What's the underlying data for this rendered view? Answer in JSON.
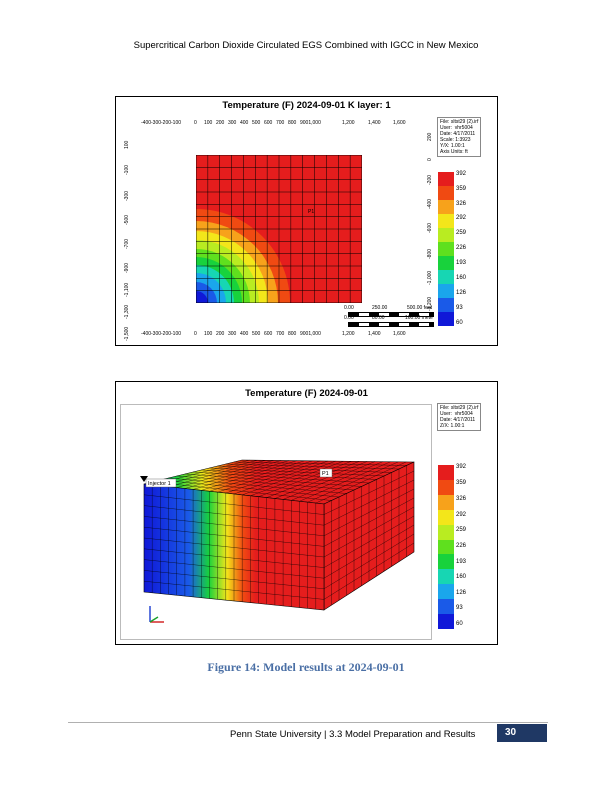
{
  "header": "Supercritical Carbon Dioxide Circulated EGS Combined with IGCC in New Mexico",
  "figure1": {
    "title": "Temperature (F) 2024-09-01     K layer: 1",
    "info": "File: sltst29 (2).irf\nUser:  vhr5004\nDate: 4/17/2011\nScale: 1:3923\nY/X: 1.00:1\nAxis Units: ft",
    "x_ticks": [
      "-400-300-200-100",
      "0",
      "100",
      "200",
      "300",
      "400",
      "500",
      "600",
      "700",
      "800",
      "9001,000",
      "1,200",
      "1,400",
      "1,600"
    ],
    "y_ticks": [
      "100",
      "-100",
      "-300",
      "-500",
      "-700",
      "-900",
      "-1,100",
      "-1,300",
      "-1,500"
    ],
    "y_ticks_right": [
      "200",
      "0",
      "-200",
      "-400",
      "-600",
      "-800",
      "-1,000",
      "-1,200"
    ],
    "well_label": "P1",
    "scale_feet": [
      "0.00",
      "250.00",
      "500.00 feet"
    ],
    "scale_meters": [
      "0.00",
      "80.00",
      "160.00 mete"
    ]
  },
  "figure2": {
    "title": "Temperature (F) 2024-09-01",
    "info": "File: sltst29 (2).irf\nUser:  vhr5004\nDate: 4/17/2011\nZ/X: 1.00:1",
    "injector_label": "Injector 1",
    "producer_label": "P1"
  },
  "colorbar": {
    "labels": [
      "392",
      "359",
      "326",
      "292",
      "259",
      "226",
      "193",
      "160",
      "126",
      "93",
      "60"
    ],
    "colors": [
      "#e51d1d",
      "#f04a12",
      "#f7a21b",
      "#f3e61a",
      "#b9ec21",
      "#5fe01e",
      "#18d23c",
      "#17d6b3",
      "#1aa6ec",
      "#1a5ae8",
      "#1018d8"
    ]
  },
  "caption": "Figure 14: Model results at 2024-09-01",
  "footer": {
    "text": "Penn State University | 3.3 Model Preparation and Results",
    "page": "30"
  }
}
